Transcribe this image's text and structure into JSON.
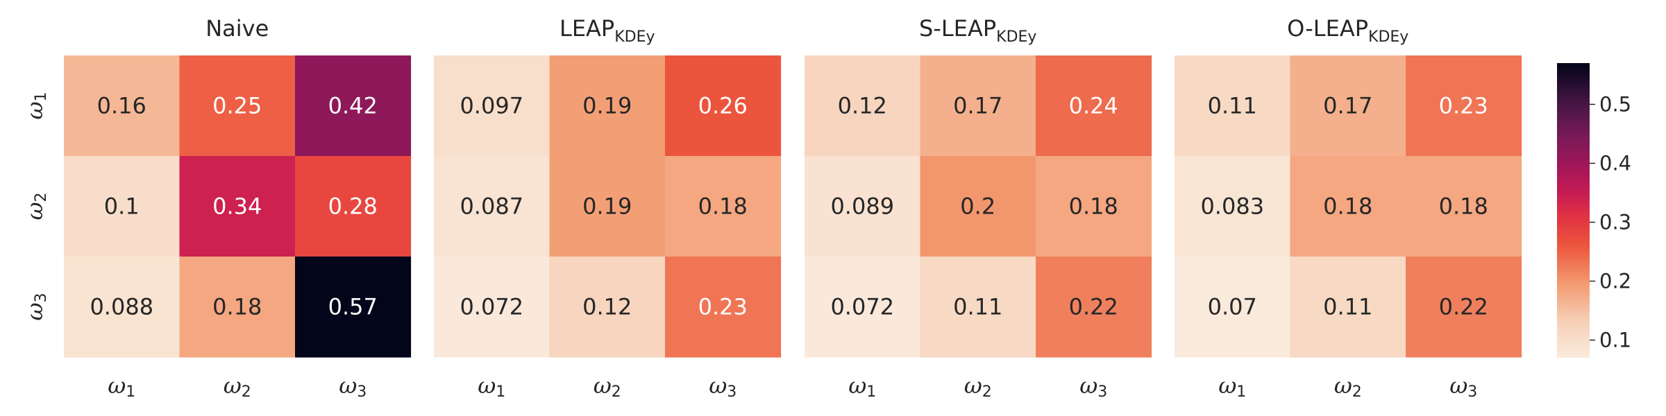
{
  "chart_data": {
    "type": "heatmap",
    "row_labels": [
      "ω1",
      "ω2",
      "ω3"
    ],
    "col_labels": [
      "ω1",
      "ω2",
      "ω3"
    ],
    "panels": [
      {
        "title_main": "Naive",
        "title_sub": "",
        "values": [
          [
            0.16,
            0.25,
            0.42
          ],
          [
            0.1,
            0.34,
            0.28
          ],
          [
            0.088,
            0.18,
            0.57
          ]
        ]
      },
      {
        "title_main": "LEAP",
        "title_sub": "KDEy",
        "values": [
          [
            0.097,
            0.19,
            0.26
          ],
          [
            0.087,
            0.19,
            0.18
          ],
          [
            0.072,
            0.12,
            0.23
          ]
        ]
      },
      {
        "title_main": "S-LEAP",
        "title_sub": "KDEy",
        "values": [
          [
            0.12,
            0.17,
            0.24
          ],
          [
            0.089,
            0.2,
            0.18
          ],
          [
            0.072,
            0.11,
            0.22
          ]
        ]
      },
      {
        "title_main": "O-LEAP",
        "title_sub": "KDEy",
        "values": [
          [
            0.11,
            0.17,
            0.23
          ],
          [
            0.083,
            0.18,
            0.18
          ],
          [
            0.07,
            0.11,
            0.22
          ]
        ]
      }
    ],
    "colorbar": {
      "min": 0.07,
      "max": 0.57,
      "ticks": [
        "0.1",
        "0.2",
        "0.3",
        "0.4",
        "0.5"
      ]
    },
    "colormap": "rocket_r",
    "grid": false,
    "legend": "colorbar-right"
  }
}
